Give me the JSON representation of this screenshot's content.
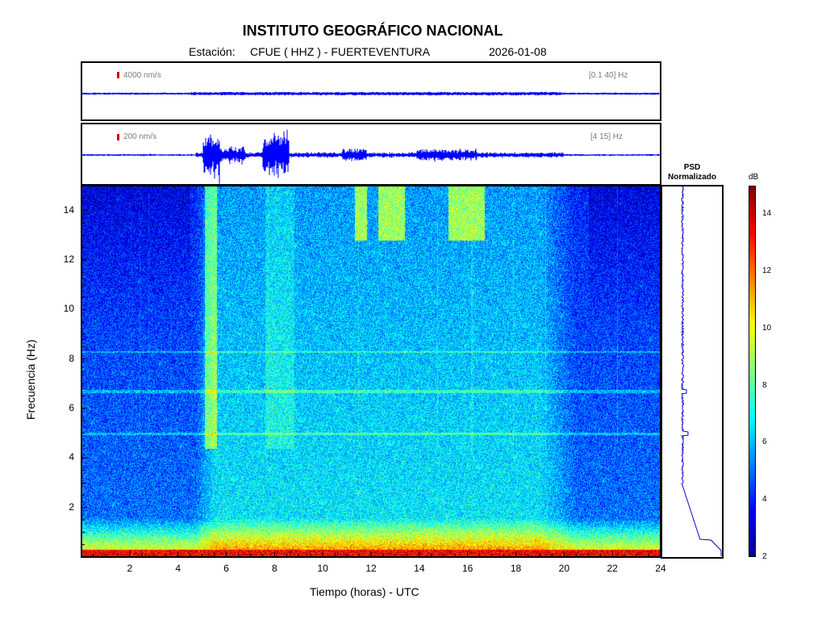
{
  "header": {
    "title": "INSTITUTO GEOGRÁFICO NACIONAL",
    "station_prefix": "Estación:",
    "station": "CFUE ( HHZ ) - FUERTEVENTURA",
    "date": "2026-01-08"
  },
  "trace_top": {
    "scale": "4000 nm/s",
    "band": "[0.1 40] Hz"
  },
  "trace_bottom": {
    "scale": "200 nm/s",
    "band": "[4 15] Hz"
  },
  "psd": {
    "title_line1": "PSD",
    "title_line2": "Normalizado"
  },
  "colorbar": {
    "unit": "dB",
    "ticks": [
      "2",
      "4",
      "6",
      "8",
      "10",
      "12",
      "14"
    ],
    "min": 2,
    "max": 15,
    "colors": [
      "#00008f",
      "#0000ff",
      "#0080ff",
      "#00ffff",
      "#80ff80",
      "#ffff00",
      "#ff8000",
      "#ff0000",
      "#800000"
    ]
  },
  "chart_data": {
    "type": "heatmap",
    "xlabel": "Tiempo (horas) - UTC",
    "ylabel": "Frecuencia  (Hz)",
    "xlim": [
      0,
      24
    ],
    "ylim": [
      0,
      15
    ],
    "xticks": [
      "2",
      "4",
      "6",
      "8",
      "10",
      "12",
      "14",
      "16",
      "18",
      "20",
      "22",
      "24"
    ],
    "yticks": [
      "2",
      "4",
      "6",
      "8",
      "10",
      "12",
      "14"
    ],
    "color_unit": "dB",
    "color_range": [
      2,
      15
    ],
    "features": [
      {
        "name": "low-frequency band",
        "freq_hz": [
          0,
          1.5
        ],
        "level_db": 12
      },
      {
        "name": "daytime noise",
        "time_h": [
          4.8,
          20
        ],
        "freq_hz": [
          1,
          15
        ],
        "level_db": 8
      },
      {
        "name": "high-frequency bursts",
        "time_h": [
          11.5,
          16.8
        ],
        "freq_hz": [
          12.5,
          15
        ],
        "level_db": 11
      },
      {
        "name": "harmonic line",
        "freq_hz": 5,
        "level_db": 8
      },
      {
        "name": "harmonic line",
        "freq_hz": 6.7,
        "level_db": 8
      },
      {
        "name": "harmonic line",
        "freq_hz": 8.3,
        "level_db": 8
      }
    ]
  }
}
